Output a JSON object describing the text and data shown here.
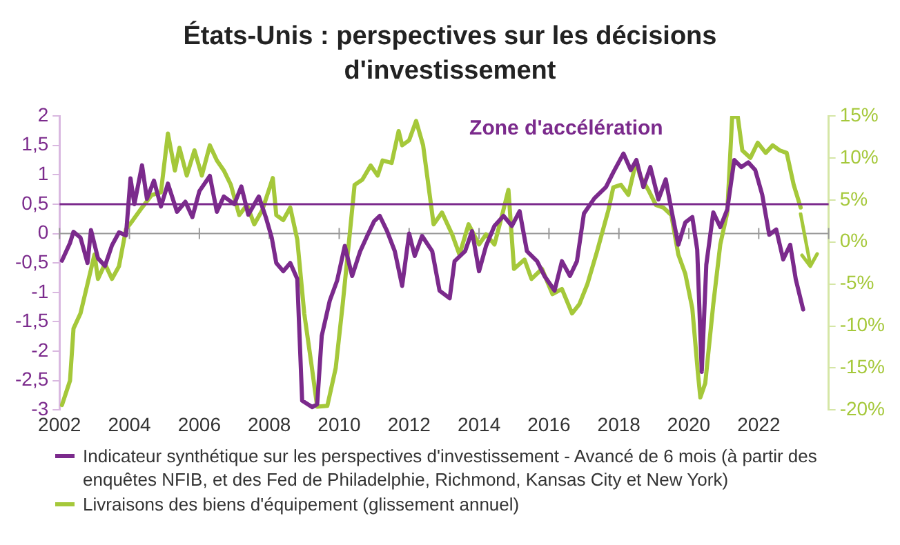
{
  "chart_data": {
    "type": "line",
    "title": "États-Unis : perspectives sur les décisions d'investissement",
    "xlim": [
      2002,
      2024
    ],
    "xticks": [
      2002,
      2004,
      2006,
      2008,
      2010,
      2012,
      2014,
      2016,
      2018,
      2020,
      2022
    ],
    "ylim": [
      -3,
      2
    ],
    "yticks": [
      {
        "value": -3,
        "label": "-3"
      },
      {
        "value": -2.5,
        "label": "-2,5"
      },
      {
        "value": -2,
        "label": "-2"
      },
      {
        "value": -1.5,
        "label": "-1,5"
      },
      {
        "value": -1,
        "label": "-1"
      },
      {
        "value": -0.5,
        "label": "-0,5"
      },
      0,
      {
        "value": 0.5,
        "label": "0,5"
      },
      1,
      {
        "value": 1.5,
        "label": "1,5"
      },
      2
    ],
    "y2lim": [
      -20,
      15
    ],
    "y2ticks": [
      {
        "value": -20,
        "label": "-20%"
      },
      {
        "value": -15,
        "label": "-15%"
      },
      {
        "value": -10,
        "label": "-10%"
      },
      {
        "value": -5,
        "label": "-5%"
      },
      {
        "value": 0,
        "label": "0%"
      },
      {
        "value": 5,
        "label": "5%"
      },
      {
        "value": 10,
        "label": "10%"
      },
      {
        "value": 15,
        "label": "15%"
      }
    ],
    "grid": false,
    "legend": "bottom",
    "marker": "none",
    "line_style": "solid",
    "ref_lines": [
      {
        "axis": "y",
        "value": 0.5,
        "label": "Zone d'accélération",
        "color": "#7b2a8c"
      }
    ],
    "series": [
      {
        "name": "Indicateur synthétique sur les perspectives d'investissement - Avancé de 6 mois (à partir des enquêtes NFIB, et des Fed de Philadelphie, Richmond, Kansas City et New York)",
        "color": "#7b2a8c",
        "x": [
          2002.07,
          2002.3,
          2002.4,
          2002.6,
          2002.8,
          2002.9,
          2003.1,
          2003.3,
          2003.5,
          2003.7,
          2003.9,
          2004.03,
          2004.14,
          2004.36,
          2004.5,
          2004.7,
          2004.9,
          2005.1,
          2005.36,
          2005.6,
          2005.8,
          2006.0,
          2006.3,
          2006.5,
          2006.7,
          2007.0,
          2007.2,
          2007.4,
          2007.7,
          2007.9,
          2008.07,
          2008.2,
          2008.4,
          2008.6,
          2008.8,
          2008.94,
          2009.23,
          2009.37,
          2009.5,
          2009.73,
          2009.94,
          2010.16,
          2010.37,
          2010.6,
          2010.8,
          2011.0,
          2011.16,
          2011.37,
          2011.59,
          2011.8,
          2012.0,
          2012.16,
          2012.37,
          2012.66,
          2012.87,
          2013.16,
          2013.3,
          2013.6,
          2013.8,
          2014.0,
          2014.2,
          2014.44,
          2014.7,
          2014.94,
          2015.16,
          2015.37,
          2015.66,
          2015.87,
          2016.16,
          2016.37,
          2016.6,
          2016.8,
          2017.0,
          2017.3,
          2017.63,
          2017.84,
          2018.13,
          2018.34,
          2018.5,
          2018.7,
          2018.9,
          2019.13,
          2019.34,
          2019.5,
          2019.7,
          2019.9,
          2020.1,
          2020.24,
          2020.37,
          2020.5,
          2020.7,
          2020.9,
          2021.1,
          2021.3,
          2021.5,
          2021.7,
          2021.9,
          2022.1,
          2022.3,
          2022.5,
          2022.7,
          2022.9,
          2023.06,
          2023.27
        ],
        "values": [
          -0.46,
          -0.16,
          0.03,
          -0.07,
          -0.5,
          0.06,
          -0.42,
          -0.55,
          -0.2,
          0.02,
          -0.03,
          0.94,
          0.5,
          1.16,
          0.59,
          0.9,
          0.46,
          0.85,
          0.37,
          0.54,
          0.28,
          0.72,
          0.98,
          0.37,
          0.63,
          0.5,
          0.8,
          0.32,
          0.63,
          0.28,
          -0.07,
          -0.5,
          -0.64,
          -0.5,
          -0.77,
          -2.84,
          -2.95,
          -2.9,
          -1.74,
          -1.14,
          -0.8,
          -0.21,
          -0.72,
          -0.3,
          -0.04,
          0.21,
          0.3,
          0.04,
          -0.3,
          -0.89,
          0,
          -0.38,
          -0.04,
          -0.3,
          -0.97,
          -1.1,
          -0.47,
          -0.3,
          0.04,
          -0.64,
          -0.21,
          0.13,
          0.3,
          0.13,
          0.38,
          -0.3,
          -0.47,
          -0.72,
          -0.97,
          -0.47,
          -0.72,
          -0.47,
          0.34,
          0.6,
          0.79,
          1.04,
          1.36,
          1.08,
          1.25,
          0.79,
          1.13,
          0.58,
          0.92,
          0.41,
          -0.19,
          0.19,
          0.28,
          -0.27,
          -2.35,
          -0.53,
          0.36,
          0.11,
          0.41,
          1.25,
          1.13,
          1.21,
          1.08,
          0.66,
          -0.02,
          0.07,
          -0.44,
          -0.19,
          -0.78,
          -1.29
        ]
      },
      {
        "name": "Livraisons des biens d'équipement (glissement annuel)",
        "color": "#a5c83a",
        "axis": "y2",
        "x": [
          2002.07,
          2002.3,
          2002.4,
          2002.6,
          2002.8,
          2003.0,
          2003.1,
          2003.3,
          2003.5,
          2003.7,
          2003.9,
          2004.1,
          2004.36,
          2004.64,
          2004.9,
          2005.1,
          2005.3,
          2005.43,
          2005.64,
          2005.86,
          2006.07,
          2006.3,
          2006.5,
          2006.7,
          2006.9,
          2007.14,
          2007.36,
          2007.57,
          2007.8,
          2008.1,
          2008.2,
          2008.4,
          2008.6,
          2008.8,
          2009.0,
          2009.2,
          2009.37,
          2009.66,
          2009.9,
          2010.1,
          2010.3,
          2010.44,
          2010.66,
          2010.9,
          2011.1,
          2011.24,
          2011.5,
          2011.7,
          2011.8,
          2012.0,
          2012.2,
          2012.4,
          2012.7,
          2012.94,
          2013.23,
          2013.44,
          2013.7,
          2014.0,
          2014.2,
          2014.44,
          2014.66,
          2014.84,
          2015.0,
          2015.3,
          2015.5,
          2015.8,
          2016.1,
          2016.37,
          2016.66,
          2016.87,
          2017.1,
          2017.37,
          2017.7,
          2017.84,
          2018.06,
          2018.27,
          2018.5,
          2018.6,
          2018.84,
          2019.06,
          2019.27,
          2019.5,
          2019.7,
          2019.9,
          2020.1,
          2020.26,
          2020.33,
          2020.47,
          2020.7,
          2020.9,
          2021.1,
          2021.24,
          2021.4,
          2021.53,
          2021.76,
          2021.97,
          2022.2,
          2022.4,
          2022.6,
          2022.8,
          2023.0,
          2023.2
        ],
        "values": [
          -19.4,
          -16.5,
          -10.3,
          -8.5,
          -5,
          -1.5,
          -4.4,
          -2.6,
          -4.4,
          -2.9,
          1.5,
          2.6,
          4.1,
          5.6,
          5.9,
          12.9,
          8.5,
          11.2,
          7.9,
          10.9,
          7.9,
          11.5,
          9.7,
          8.5,
          6.8,
          3.2,
          4.4,
          2.1,
          3.8,
          7.6,
          3.2,
          2.6,
          4.1,
          0.3,
          -8.5,
          -14.4,
          -19.6,
          -19.5,
          -15,
          -7.4,
          0.9,
          6.8,
          7.4,
          9.1,
          7.9,
          9.7,
          9.4,
          13.2,
          11.5,
          12.1,
          14.4,
          11.5,
          2.1,
          3.5,
          0.9,
          -1.5,
          2.1,
          -0.3,
          0.9,
          -0.3,
          3.2,
          6.2,
          -3.2,
          -2.1,
          -4.4,
          -3.2,
          -6.2,
          -5.6,
          -8.5,
          -7.4,
          -5,
          -1.2,
          3.8,
          6.5,
          6.8,
          5.6,
          9.7,
          7.9,
          6.2,
          4.4,
          4.1,
          3.2,
          -1.5,
          -3.8,
          -7.9,
          -15.6,
          -18.5,
          -16.8,
          -7.4,
          -0.3,
          3.5,
          14.9,
          14.9,
          10.9,
          10,
          11.8,
          10.6,
          11.5,
          10.9,
          10.6,
          6.8,
          4.1
        ]
      }
    ]
  }
}
